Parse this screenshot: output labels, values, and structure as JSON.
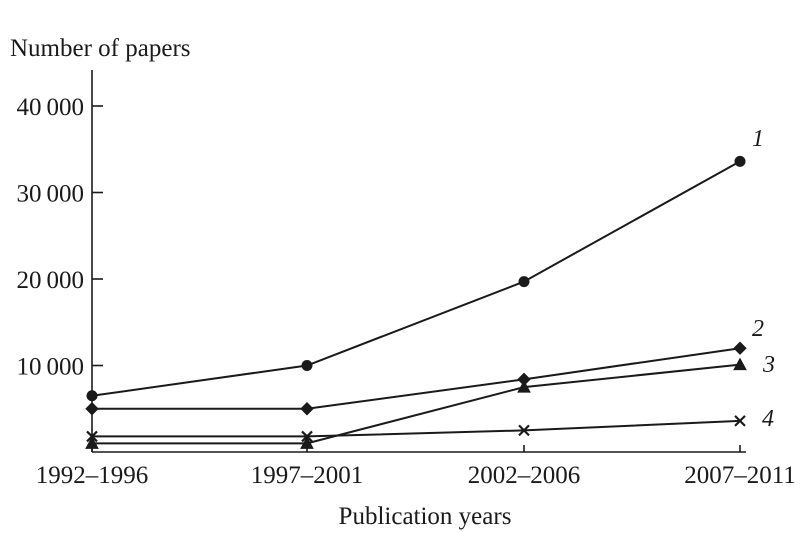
{
  "chart_data": {
    "type": "line",
    "ylabel": "Number of papers",
    "xlabel": "Publication years",
    "categories": [
      "1992–1996",
      "1997–2001",
      "2002–2006",
      "2007–2011"
    ],
    "ylim": [
      0,
      44000
    ],
    "yticks": [
      10000,
      20000,
      30000,
      40000
    ],
    "ytick_labels": [
      "10 000",
      "20 000",
      "30 000",
      "40 000"
    ],
    "grid": false,
    "series": [
      {
        "name": "1",
        "marker": "circle",
        "values": [
          6500,
          10000,
          19700,
          33600
        ]
      },
      {
        "name": "2",
        "marker": "diamond",
        "values": [
          5000,
          5000,
          8400,
          12000
        ]
      },
      {
        "name": "3",
        "marker": "triangle",
        "values": [
          1000,
          1000,
          7500,
          10100
        ]
      },
      {
        "name": "4",
        "marker": "cross",
        "values": [
          1800,
          1800,
          2500,
          3600
        ]
      }
    ]
  }
}
